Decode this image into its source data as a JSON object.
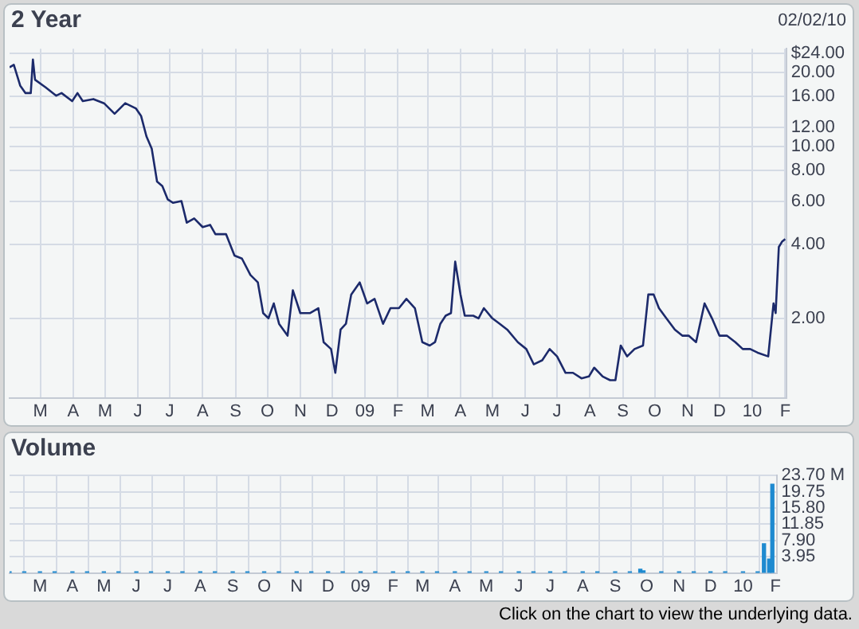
{
  "chart_data": [
    {
      "type": "line",
      "title": "2 Year",
      "subtitle": "02/02/10",
      "log": "y",
      "grid": true,
      "legend": false,
      "marker": "none",
      "x": [
        "2008-02-01",
        "2008-02-05",
        "2008-02-11",
        "2008-02-16",
        "2008-02-21",
        "2008-02-23",
        "2008-02-25",
        "2008-03-06",
        "2008-03-16",
        "2008-03-21",
        "2008-03-31",
        "2008-04-05",
        "2008-04-10",
        "2008-04-20",
        "2008-04-30",
        "2008-05-10",
        "2008-05-20",
        "2008-05-30",
        "2008-06-04",
        "2008-06-09",
        "2008-06-14",
        "2008-06-19",
        "2008-06-24",
        "2008-06-29",
        "2008-07-04",
        "2008-07-12",
        "2008-07-17",
        "2008-07-24",
        "2008-08-01",
        "2008-08-08",
        "2008-08-13",
        "2008-08-23",
        "2008-08-31",
        "2008-09-07",
        "2008-09-15",
        "2008-09-22",
        "2008-09-27",
        "2008-10-02",
        "2008-10-07",
        "2008-10-12",
        "2008-10-20",
        "2008-10-25",
        "2008-11-01",
        "2008-11-10",
        "2008-11-18",
        "2008-11-23",
        "2008-11-30",
        "2008-12-04",
        "2008-12-09",
        "2008-12-14",
        "2008-12-19",
        "2008-12-27",
        "2009-01-03",
        "2009-01-10",
        "2009-01-18",
        "2009-01-25",
        "2009-02-02",
        "2009-02-09",
        "2009-02-17",
        "2009-02-24",
        "2009-03-03",
        "2009-03-08",
        "2009-03-13",
        "2009-03-18",
        "2009-03-23",
        "2009-03-27",
        "2009-04-01",
        "2009-04-05",
        "2009-04-13",
        "2009-04-18",
        "2009-04-23",
        "2009-05-01",
        "2009-05-08",
        "2009-05-15",
        "2009-05-25",
        "2009-06-02",
        "2009-06-09",
        "2009-06-17",
        "2009-06-24",
        "2009-07-01",
        "2009-07-09",
        "2009-07-16",
        "2009-07-24",
        "2009-07-31",
        "2009-08-05",
        "2009-08-13",
        "2009-08-20",
        "2009-08-25",
        "2009-08-30",
        "2009-09-05",
        "2009-09-12",
        "2009-09-20",
        "2009-09-25",
        "2009-09-30",
        "2009-10-05",
        "2009-10-12",
        "2009-10-20",
        "2009-10-27",
        "2009-11-02",
        "2009-11-09",
        "2009-11-17",
        "2009-11-24",
        "2009-12-01",
        "2009-12-08",
        "2009-12-16",
        "2009-12-23",
        "2009-12-30",
        "2010-01-06",
        "2010-01-16",
        "2010-01-21",
        "2010-01-23",
        "2010-01-26",
        "2010-01-29",
        "2010-02-01"
      ],
      "series": [
        {
          "color": "#1c2a6b",
          "values": [
            21,
            21.5,
            17.7,
            16.5,
            16.5,
            22.6,
            18.7,
            17.4,
            16.1,
            16.5,
            15.3,
            16.5,
            15.3,
            15.6,
            15,
            13.6,
            15,
            14.3,
            13.3,
            11,
            9.8,
            7.2,
            6.9,
            6.1,
            5.9,
            6,
            4.9,
            5.1,
            4.7,
            4.8,
            4.4,
            4.4,
            3.6,
            3.5,
            3.0,
            2.8,
            2.1,
            2.0,
            2.3,
            1.9,
            1.7,
            2.6,
            2.1,
            2.1,
            2.2,
            1.6,
            1.5,
            1.2,
            1.8,
            1.9,
            2.5,
            2.8,
            2.3,
            2.4,
            1.9,
            2.2,
            2.2,
            2.4,
            2.2,
            1.6,
            1.55,
            1.6,
            1.9,
            2.05,
            2.1,
            3.4,
            2.5,
            2.05,
            2.05,
            2.0,
            2.2,
            2.0,
            1.9,
            1.8,
            1.6,
            1.5,
            1.3,
            1.35,
            1.5,
            1.4,
            1.2,
            1.2,
            1.14,
            1.16,
            1.26,
            1.16,
            1.12,
            1.12,
            1.55,
            1.4,
            1.5,
            1.55,
            2.5,
            2.5,
            2.2,
            2.0,
            1.8,
            1.7,
            1.7,
            1.6,
            2.3,
            2.0,
            1.7,
            1.7,
            1.6,
            1.5,
            1.5,
            1.45,
            1.4,
            2.3,
            2.1,
            3.9,
            4.1,
            4.2
          ]
        }
      ],
      "xlim": [
        "2008-02-01",
        "2010-02-02"
      ],
      "xticks": [
        {
          "value": "2008-03-01",
          "label": "M"
        },
        {
          "value": "2008-04-01",
          "label": "A"
        },
        {
          "value": "2008-05-01",
          "label": "M"
        },
        {
          "value": "2008-06-01",
          "label": "J"
        },
        {
          "value": "2008-07-01",
          "label": "J"
        },
        {
          "value": "2008-08-01",
          "label": "A"
        },
        {
          "value": "2008-09-01",
          "label": "S"
        },
        {
          "value": "2008-10-01",
          "label": "O"
        },
        {
          "value": "2008-11-01",
          "label": "N"
        },
        {
          "value": "2008-12-01",
          "label": "D"
        },
        {
          "value": "2009-01-01",
          "label": "09"
        },
        {
          "value": "2009-02-01",
          "label": "F"
        },
        {
          "value": "2009-03-01",
          "label": "M"
        },
        {
          "value": "2009-04-01",
          "label": "A"
        },
        {
          "value": "2009-05-01",
          "label": "M"
        },
        {
          "value": "2009-06-01",
          "label": "J"
        },
        {
          "value": "2009-07-01",
          "label": "J"
        },
        {
          "value": "2009-08-01",
          "label": "A"
        },
        {
          "value": "2009-09-01",
          "label": "S"
        },
        {
          "value": "2009-10-01",
          "label": "O"
        },
        {
          "value": "2009-11-01",
          "label": "N"
        },
        {
          "value": "2009-12-01",
          "label": "D"
        },
        {
          "value": "2010-01-01",
          "label": "10"
        },
        {
          "value": "2010-02-01",
          "label": "F"
        }
      ],
      "ylim": [
        0.95,
        25
      ],
      "yticks": [
        {
          "value": 2,
          "label": "2.00"
        },
        {
          "value": 4,
          "label": "4.00"
        },
        {
          "value": 6,
          "label": "6.00"
        },
        {
          "value": 8,
          "label": "8.00"
        },
        {
          "value": 10,
          "label": "10.00"
        },
        {
          "value": 12,
          "label": "12.00"
        },
        {
          "value": 16,
          "label": "16.00"
        },
        {
          "value": 20,
          "label": "20.00"
        },
        {
          "value": 24,
          "label": "$24.00"
        }
      ]
    },
    {
      "type": "bar",
      "title": "Volume",
      "grid": true,
      "legend": false,
      "annotations": [
        "Click on the chart to view the underlying data."
      ],
      "x": [
        "2008-02-01",
        "2008-02-15",
        "2008-03-01",
        "2008-03-15",
        "2008-04-01",
        "2008-04-15",
        "2008-05-01",
        "2008-05-15",
        "2008-06-01",
        "2008-06-15",
        "2008-07-01",
        "2008-07-15",
        "2008-08-01",
        "2008-08-15",
        "2008-09-01",
        "2008-09-15",
        "2008-10-01",
        "2008-10-15",
        "2008-11-01",
        "2008-11-15",
        "2008-12-01",
        "2008-12-15",
        "2009-01-01",
        "2009-01-15",
        "2009-02-01",
        "2009-02-15",
        "2009-03-01",
        "2009-03-15",
        "2009-04-01",
        "2009-04-15",
        "2009-05-01",
        "2009-05-15",
        "2009-06-01",
        "2009-06-15",
        "2009-07-01",
        "2009-07-15",
        "2009-08-01",
        "2009-08-15",
        "2009-09-01",
        "2009-09-15",
        "2009-09-25",
        "2009-09-28",
        "2009-10-15",
        "2009-11-01",
        "2009-11-15",
        "2009-12-01",
        "2009-12-15",
        "2010-01-01",
        "2010-01-15",
        "2010-01-21",
        "2010-01-26",
        "2010-01-29"
      ],
      "series": [
        {
          "color": "#1e8ad0",
          "values": [
            0.3,
            0.3,
            0.3,
            0.3,
            0.3,
            0.3,
            0.3,
            0.3,
            0.3,
            0.3,
            0.3,
            0.3,
            0.3,
            0.3,
            0.3,
            0.3,
            0.3,
            0.3,
            0.3,
            0.3,
            0.3,
            0.3,
            0.3,
            0.3,
            0.3,
            0.3,
            0.3,
            0.3,
            0.3,
            0.3,
            0.3,
            0.3,
            0.3,
            0.3,
            0.3,
            0.3,
            0.3,
            0.3,
            0.3,
            0.3,
            0.9,
            0.5,
            0.3,
            0.3,
            0.3,
            0.3,
            0.3,
            0.3,
            0.3,
            7.1,
            3.4,
            21.6
          ]
        }
      ],
      "xlim": [
        "2008-02-01",
        "2010-02-02"
      ],
      "xticks": [
        {
          "value": "2008-03-01",
          "label": "M"
        },
        {
          "value": "2008-04-01",
          "label": "A"
        },
        {
          "value": "2008-05-01",
          "label": "M"
        },
        {
          "value": "2008-06-01",
          "label": "J"
        },
        {
          "value": "2008-07-01",
          "label": "J"
        },
        {
          "value": "2008-08-01",
          "label": "A"
        },
        {
          "value": "2008-09-01",
          "label": "S"
        },
        {
          "value": "2008-10-01",
          "label": "O"
        },
        {
          "value": "2008-11-01",
          "label": "N"
        },
        {
          "value": "2008-12-01",
          "label": "D"
        },
        {
          "value": "2009-01-01",
          "label": "09"
        },
        {
          "value": "2009-02-01",
          "label": "F"
        },
        {
          "value": "2009-03-01",
          "label": "M"
        },
        {
          "value": "2009-04-01",
          "label": "A"
        },
        {
          "value": "2009-05-01",
          "label": "M"
        },
        {
          "value": "2009-06-01",
          "label": "J"
        },
        {
          "value": "2009-07-01",
          "label": "J"
        },
        {
          "value": "2009-08-01",
          "label": "A"
        },
        {
          "value": "2009-09-01",
          "label": "S"
        },
        {
          "value": "2009-10-01",
          "label": "O"
        },
        {
          "value": "2009-11-01",
          "label": "N"
        },
        {
          "value": "2009-12-01",
          "label": "D"
        },
        {
          "value": "2010-01-01",
          "label": "10"
        },
        {
          "value": "2010-02-01",
          "label": "F"
        }
      ],
      "ylim": [
        0,
        23.7
      ],
      "yticks": [
        3.95,
        {
          "value": 7.9,
          "label": "7.90"
        },
        11.85,
        {
          "value": 15.8,
          "label": "15.80"
        },
        19.75,
        {
          "value": 23.7,
          "label": "23.70 M"
        }
      ]
    }
  ]
}
